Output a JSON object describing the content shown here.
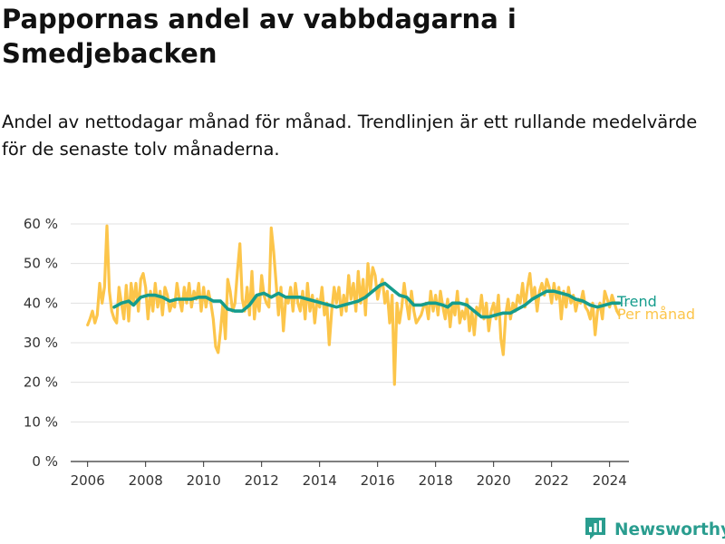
{
  "title": "Pappornas andel av vabbdagarna i Smedjebacken",
  "subtitle": "Andel av nettodagar månad för månad. Trendlinjen är ett rullande medelvärde för de senaste tolv månaderna.",
  "brand": {
    "name": "Newsworthy",
    "icon": "newsworthy-logo-icon"
  },
  "colors": {
    "trend": "#159c8c",
    "monthly": "#fcc54a",
    "axis": "#333333",
    "grid": "#e0e0e0"
  },
  "chart_data": {
    "type": "line",
    "title": "Pappornas andel av vabbdagarna i Smedjebacken",
    "xlabel": "",
    "ylabel": "",
    "x_range": [
      "2005-06",
      "2024-09"
    ],
    "ylim": [
      0,
      60
    ],
    "y_ticks": [
      0,
      10,
      20,
      30,
      40,
      50,
      60
    ],
    "y_tick_labels": [
      "0 %",
      "10 %",
      "20 %",
      "30 %",
      "40 %",
      "50 %",
      "60 %"
    ],
    "x_ticks": [
      "2006",
      "2008",
      "2010",
      "2012",
      "2014",
      "2016",
      "2018",
      "2020",
      "2022",
      "2024"
    ],
    "grid": "horizontal",
    "legend": "direct labels at line ends",
    "series": [
      {
        "name": "Per månad",
        "points": [
          [
            "2006-01",
            34.5
          ],
          [
            "2006-02",
            36
          ],
          [
            "2006-03",
            38
          ],
          [
            "2006-04",
            35
          ],
          [
            "2006-05",
            37
          ],
          [
            "2006-06",
            45
          ],
          [
            "2006-07",
            40
          ],
          [
            "2006-08",
            44
          ],
          [
            "2006-09",
            59.5
          ],
          [
            "2006-10",
            43
          ],
          [
            "2006-11",
            38
          ],
          [
            "2006-12",
            36
          ],
          [
            "2007-01",
            35
          ],
          [
            "2007-02",
            44
          ],
          [
            "2007-03",
            40
          ],
          [
            "2007-04",
            36
          ],
          [
            "2007-05",
            44.5
          ],
          [
            "2007-06",
            35.5
          ],
          [
            "2007-07",
            45
          ],
          [
            "2007-08",
            40
          ],
          [
            "2007-09",
            45
          ],
          [
            "2007-10",
            38
          ],
          [
            "2007-11",
            46
          ],
          [
            "2007-12",
            47.5
          ],
          [
            "2008-01",
            44
          ],
          [
            "2008-02",
            36
          ],
          [
            "2008-03",
            43
          ],
          [
            "2008-04",
            38
          ],
          [
            "2008-05",
            45
          ],
          [
            "2008-06",
            39
          ],
          [
            "2008-07",
            43
          ],
          [
            "2008-08",
            37
          ],
          [
            "2008-09",
            44
          ],
          [
            "2008-10",
            42
          ],
          [
            "2008-11",
            38
          ],
          [
            "2008-12",
            40
          ],
          [
            "2009-01",
            39
          ],
          [
            "2009-02",
            45
          ],
          [
            "2009-03",
            41
          ],
          [
            "2009-04",
            38
          ],
          [
            "2009-05",
            44
          ],
          [
            "2009-06",
            40
          ],
          [
            "2009-07",
            45
          ],
          [
            "2009-08",
            39
          ],
          [
            "2009-09",
            43
          ],
          [
            "2009-10",
            41
          ],
          [
            "2009-11",
            45
          ],
          [
            "2009-12",
            38
          ],
          [
            "2010-01",
            44
          ],
          [
            "2010-02",
            39
          ],
          [
            "2010-03",
            43
          ],
          [
            "2010-04",
            40
          ],
          [
            "2010-05",
            36
          ],
          [
            "2010-06",
            29
          ],
          [
            "2010-07",
            27.5
          ],
          [
            "2010-08",
            33
          ],
          [
            "2010-09",
            40
          ],
          [
            "2010-10",
            31
          ],
          [
            "2010-11",
            46
          ],
          [
            "2010-12",
            43
          ],
          [
            "2011-01",
            38
          ],
          [
            "2011-02",
            40
          ],
          [
            "2011-03",
            48
          ],
          [
            "2011-04",
            55
          ],
          [
            "2011-05",
            41
          ],
          [
            "2011-06",
            38
          ],
          [
            "2011-07",
            44
          ],
          [
            "2011-08",
            37
          ],
          [
            "2011-09",
            48
          ],
          [
            "2011-10",
            36
          ],
          [
            "2011-11",
            42
          ],
          [
            "2011-12",
            38
          ],
          [
            "2012-01",
            47
          ],
          [
            "2012-02",
            42
          ],
          [
            "2012-03",
            40
          ],
          [
            "2012-04",
            39
          ],
          [
            "2012-05",
            59
          ],
          [
            "2012-06",
            53
          ],
          [
            "2012-07",
            45
          ],
          [
            "2012-08",
            37
          ],
          [
            "2012-09",
            44
          ],
          [
            "2012-10",
            33
          ],
          [
            "2012-11",
            41
          ],
          [
            "2012-12",
            40
          ],
          [
            "2013-01",
            44
          ],
          [
            "2013-02",
            38
          ],
          [
            "2013-03",
            45
          ],
          [
            "2013-04",
            40
          ],
          [
            "2013-05",
            38
          ],
          [
            "2013-06",
            43
          ],
          [
            "2013-07",
            36
          ],
          [
            "2013-08",
            45
          ],
          [
            "2013-09",
            38
          ],
          [
            "2013-10",
            42
          ],
          [
            "2013-11",
            35
          ],
          [
            "2013-12",
            41
          ],
          [
            "2014-01",
            39
          ],
          [
            "2014-02",
            44
          ],
          [
            "2014-03",
            37
          ],
          [
            "2014-04",
            40
          ],
          [
            "2014-05",
            29.5
          ],
          [
            "2014-06",
            38
          ],
          [
            "2014-07",
            44
          ],
          [
            "2014-08",
            40
          ],
          [
            "2014-09",
            44
          ],
          [
            "2014-10",
            37
          ],
          [
            "2014-11",
            42
          ],
          [
            "2014-12",
            38
          ],
          [
            "2015-01",
            47
          ],
          [
            "2015-02",
            41
          ],
          [
            "2015-03",
            45
          ],
          [
            "2015-04",
            38
          ],
          [
            "2015-05",
            48
          ],
          [
            "2015-06",
            40
          ],
          [
            "2015-07",
            46
          ],
          [
            "2015-08",
            37
          ],
          [
            "2015-09",
            50
          ],
          [
            "2015-10",
            43
          ],
          [
            "2015-11",
            49
          ],
          [
            "2015-12",
            47
          ],
          [
            "2016-01",
            41
          ],
          [
            "2016-02",
            44
          ],
          [
            "2016-03",
            46
          ],
          [
            "2016-04",
            40
          ],
          [
            "2016-05",
            43
          ],
          [
            "2016-06",
            35
          ],
          [
            "2016-07",
            42
          ],
          [
            "2016-08",
            19.5
          ],
          [
            "2016-09",
            40
          ],
          [
            "2016-10",
            35
          ],
          [
            "2016-11",
            39
          ],
          [
            "2016-12",
            45
          ],
          [
            "2017-01",
            40
          ],
          [
            "2017-02",
            36
          ],
          [
            "2017-03",
            43
          ],
          [
            "2017-04",
            38
          ],
          [
            "2017-05",
            35
          ],
          [
            "2017-06",
            36
          ],
          [
            "2017-07",
            37
          ],
          [
            "2017-08",
            39
          ],
          [
            "2017-09",
            40
          ],
          [
            "2017-10",
            36
          ],
          [
            "2017-11",
            43
          ],
          [
            "2017-12",
            38
          ],
          [
            "2018-01",
            42
          ],
          [
            "2018-02",
            37
          ],
          [
            "2018-03",
            43
          ],
          [
            "2018-04",
            39
          ],
          [
            "2018-05",
            36
          ],
          [
            "2018-06",
            41
          ],
          [
            "2018-07",
            34
          ],
          [
            "2018-08",
            40
          ],
          [
            "2018-09",
            37
          ],
          [
            "2018-10",
            43
          ],
          [
            "2018-11",
            35
          ],
          [
            "2018-12",
            38
          ],
          [
            "2019-01",
            36
          ],
          [
            "2019-02",
            41
          ],
          [
            "2019-03",
            33
          ],
          [
            "2019-04",
            38
          ],
          [
            "2019-05",
            32
          ],
          [
            "2019-06",
            39
          ],
          [
            "2019-07",
            37
          ],
          [
            "2019-08",
            42
          ],
          [
            "2019-09",
            36
          ],
          [
            "2019-10",
            40
          ],
          [
            "2019-11",
            33
          ],
          [
            "2019-12",
            38
          ],
          [
            "2020-01",
            40
          ],
          [
            "2020-02",
            36
          ],
          [
            "2020-03",
            42
          ],
          [
            "2020-04",
            31
          ],
          [
            "2020-05",
            27
          ],
          [
            "2020-06",
            37
          ],
          [
            "2020-07",
            41
          ],
          [
            "2020-08",
            36
          ],
          [
            "2020-09",
            40
          ],
          [
            "2020-10",
            38
          ],
          [
            "2020-11",
            42
          ],
          [
            "2020-12",
            40
          ],
          [
            "2021-01",
            45
          ],
          [
            "2021-02",
            39
          ],
          [
            "2021-03",
            44
          ],
          [
            "2021-04",
            47.5
          ],
          [
            "2021-05",
            41
          ],
          [
            "2021-06",
            44
          ],
          [
            "2021-07",
            38
          ],
          [
            "2021-08",
            43
          ],
          [
            "2021-09",
            45
          ],
          [
            "2021-10",
            42
          ],
          [
            "2021-11",
            46
          ],
          [
            "2021-12",
            44
          ],
          [
            "2022-01",
            40
          ],
          [
            "2022-02",
            45
          ],
          [
            "2022-03",
            41
          ],
          [
            "2022-04",
            44
          ],
          [
            "2022-05",
            36
          ],
          [
            "2022-06",
            43
          ],
          [
            "2022-07",
            39
          ],
          [
            "2022-08",
            44
          ],
          [
            "2022-09",
            40
          ],
          [
            "2022-10",
            42
          ],
          [
            "2022-11",
            38
          ],
          [
            "2022-12",
            41
          ],
          [
            "2023-01",
            40
          ],
          [
            "2023-02",
            43
          ],
          [
            "2023-03",
            39
          ],
          [
            "2023-04",
            38
          ],
          [
            "2023-05",
            36
          ],
          [
            "2023-06",
            40
          ],
          [
            "2023-07",
            32
          ],
          [
            "2023-08",
            38
          ],
          [
            "2023-09",
            40
          ],
          [
            "2023-10",
            36
          ],
          [
            "2023-11",
            43
          ],
          [
            "2023-12",
            41
          ],
          [
            "2024-01",
            39
          ],
          [
            "2024-02",
            42
          ],
          [
            "2024-03",
            40
          ],
          [
            "2024-04",
            38
          ],
          [
            "2024-05",
            37
          ]
        ]
      },
      {
        "name": "Trend",
        "points": [
          [
            "2006-12",
            39
          ],
          [
            "2007-03",
            40
          ],
          [
            "2007-06",
            40.5
          ],
          [
            "2007-08",
            39.5
          ],
          [
            "2007-11",
            41.5
          ],
          [
            "2008-02",
            42
          ],
          [
            "2008-05",
            42
          ],
          [
            "2008-08",
            41.5
          ],
          [
            "2008-11",
            40.5
          ],
          [
            "2009-02",
            41
          ],
          [
            "2009-05",
            41
          ],
          [
            "2009-08",
            41
          ],
          [
            "2009-11",
            41.5
          ],
          [
            "2010-02",
            41.5
          ],
          [
            "2010-05",
            40.5
          ],
          [
            "2010-08",
            40.5
          ],
          [
            "2010-11",
            38.5
          ],
          [
            "2011-02",
            38
          ],
          [
            "2011-05",
            38
          ],
          [
            "2011-08",
            39.5
          ],
          [
            "2011-11",
            42
          ],
          [
            "2012-02",
            42.5
          ],
          [
            "2012-05",
            41.5
          ],
          [
            "2012-08",
            42.5
          ],
          [
            "2012-11",
            41.5
          ],
          [
            "2013-02",
            41.5
          ],
          [
            "2013-05",
            41.5
          ],
          [
            "2013-08",
            41
          ],
          [
            "2013-11",
            40.5
          ],
          [
            "2014-02",
            40
          ],
          [
            "2014-05",
            39.5
          ],
          [
            "2014-08",
            39
          ],
          [
            "2014-11",
            39.5
          ],
          [
            "2015-02",
            40
          ],
          [
            "2015-05",
            40.5
          ],
          [
            "2015-08",
            41.5
          ],
          [
            "2015-11",
            43
          ],
          [
            "2016-02",
            44.5
          ],
          [
            "2016-04",
            45
          ],
          [
            "2016-07",
            43.5
          ],
          [
            "2016-10",
            42
          ],
          [
            "2017-01",
            41.5
          ],
          [
            "2017-04",
            39.5
          ],
          [
            "2017-07",
            39.5
          ],
          [
            "2017-10",
            40
          ],
          [
            "2018-01",
            40
          ],
          [
            "2018-04",
            39.5
          ],
          [
            "2018-06",
            39
          ],
          [
            "2018-08",
            40
          ],
          [
            "2018-11",
            40
          ],
          [
            "2019-02",
            39.5
          ],
          [
            "2019-05",
            38
          ],
          [
            "2019-08",
            36.5
          ],
          [
            "2019-11",
            36.5
          ],
          [
            "2020-02",
            37
          ],
          [
            "2020-05",
            37.5
          ],
          [
            "2020-08",
            37.5
          ],
          [
            "2020-11",
            38.5
          ],
          [
            "2021-02",
            39.5
          ],
          [
            "2021-05",
            41
          ],
          [
            "2021-08",
            42
          ],
          [
            "2021-11",
            43
          ],
          [
            "2022-02",
            43
          ],
          [
            "2022-05",
            42.5
          ],
          [
            "2022-08",
            42
          ],
          [
            "2022-11",
            41
          ],
          [
            "2023-02",
            40.5
          ],
          [
            "2023-05",
            39.5
          ],
          [
            "2023-08",
            39
          ],
          [
            "2023-11",
            39.5
          ],
          [
            "2024-02",
            40
          ],
          [
            "2024-05",
            40
          ]
        ]
      }
    ]
  }
}
